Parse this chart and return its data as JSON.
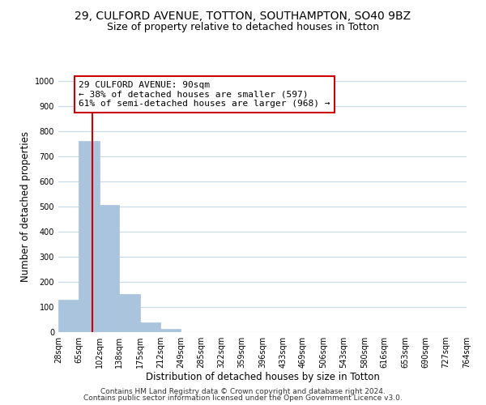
{
  "title": "29, CULFORD AVENUE, TOTTON, SOUTHAMPTON, SO40 9BZ",
  "subtitle": "Size of property relative to detached houses in Totton",
  "xlabel": "Distribution of detached houses by size in Totton",
  "ylabel": "Number of detached properties",
  "bar_edges": [
    28,
    65,
    102,
    138,
    175,
    212,
    249,
    285,
    322,
    359,
    396,
    433,
    469,
    506,
    543,
    580,
    616,
    653,
    690,
    727,
    764
  ],
  "bar_heights": [
    128,
    760,
    505,
    152,
    40,
    12,
    0,
    0,
    0,
    0,
    0,
    0,
    0,
    0,
    0,
    0,
    0,
    0,
    0,
    0
  ],
  "bar_color": "#aac4de",
  "bar_edgecolor": "#aac4de",
  "property_line_x": 90,
  "property_line_color": "#cc0000",
  "annotation_text": "29 CULFORD AVENUE: 90sqm\n← 38% of detached houses are smaller (597)\n61% of semi-detached houses are larger (968) →",
  "annotation_box_edgecolor": "#cc0000",
  "annotation_box_facecolor": "#ffffff",
  "ylim": [
    0,
    1000
  ],
  "yticks": [
    0,
    100,
    200,
    300,
    400,
    500,
    600,
    700,
    800,
    900,
    1000
  ],
  "tick_labels": [
    "28sqm",
    "65sqm",
    "102sqm",
    "138sqm",
    "175sqm",
    "212sqm",
    "249sqm",
    "285sqm",
    "322sqm",
    "359sqm",
    "396sqm",
    "433sqm",
    "469sqm",
    "506sqm",
    "543sqm",
    "580sqm",
    "616sqm",
    "653sqm",
    "690sqm",
    "727sqm",
    "764sqm"
  ],
  "footer_line1": "Contains HM Land Registry data © Crown copyright and database right 2024.",
  "footer_line2": "Contains public sector information licensed under the Open Government Licence v3.0.",
  "background_color": "#ffffff",
  "grid_color": "#c8d8e8",
  "title_fontsize": 10,
  "subtitle_fontsize": 9,
  "axis_label_fontsize": 8.5,
  "tick_fontsize": 7,
  "annotation_fontsize": 8,
  "footer_fontsize": 6.5
}
